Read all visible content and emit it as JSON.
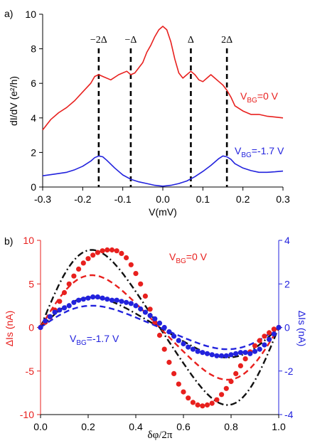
{
  "chart_data": [
    {
      "panel_label": "a)",
      "type": "line",
      "xlabel": "V(mV)",
      "ylabel": "dI/dV (e²/h)",
      "xlim": [
        -0.3,
        0.3
      ],
      "ylim": [
        0,
        10
      ],
      "x_ticks": [
        "-0.3",
        "-0.2",
        "-0.1",
        "0.0",
        "0.1",
        "0.2",
        "0.3"
      ],
      "y_ticks": [
        "0",
        "2",
        "4",
        "6",
        "8",
        "10"
      ],
      "grid": false,
      "series": [
        {
          "color": "#e8201e",
          "label_main": "V",
          "label_sub": "BG",
          "label_rest": "=0 V",
          "x": [
            -0.3,
            -0.28,
            -0.26,
            -0.24,
            -0.22,
            -0.2,
            -0.18,
            -0.17,
            -0.16,
            -0.15,
            -0.13,
            -0.11,
            -0.09,
            -0.08,
            -0.07,
            -0.05,
            -0.04,
            -0.03,
            -0.02,
            -0.01,
            0.0,
            0.01,
            0.02,
            0.03,
            0.04,
            0.05,
            0.06,
            0.07,
            0.08,
            0.09,
            0.1,
            0.11,
            0.12,
            0.13,
            0.14,
            0.15,
            0.16,
            0.17,
            0.18,
            0.2,
            0.22,
            0.24,
            0.26,
            0.28,
            0.3
          ],
          "y": [
            3.3,
            3.9,
            4.3,
            4.6,
            5.0,
            5.5,
            6.0,
            6.4,
            6.5,
            6.4,
            6.2,
            6.5,
            6.7,
            6.5,
            6.6,
            7.2,
            7.8,
            8.2,
            8.7,
            9.1,
            9.3,
            9.1,
            8.4,
            7.4,
            6.6,
            6.3,
            6.5,
            6.7,
            6.5,
            6.2,
            6.1,
            6.3,
            6.5,
            6.3,
            6.1,
            5.9,
            5.6,
            5.2,
            4.7,
            4.4,
            4.2,
            4.2,
            4.1,
            4.05,
            4.0
          ]
        },
        {
          "color": "#2222dd",
          "label_main": "V",
          "label_sub": "BG",
          "label_rest": "=-1.7 V",
          "x": [
            -0.3,
            -0.27,
            -0.24,
            -0.22,
            -0.2,
            -0.18,
            -0.17,
            -0.16,
            -0.15,
            -0.14,
            -0.12,
            -0.1,
            -0.08,
            -0.06,
            -0.04,
            -0.02,
            0.0,
            0.02,
            0.04,
            0.06,
            0.08,
            0.1,
            0.12,
            0.14,
            0.15,
            0.16,
            0.17,
            0.18,
            0.2,
            0.22,
            0.24,
            0.26,
            0.28,
            0.3
          ],
          "y": [
            0.65,
            0.75,
            0.85,
            1.0,
            1.2,
            1.5,
            1.7,
            1.8,
            1.75,
            1.55,
            1.1,
            0.7,
            0.45,
            0.3,
            0.2,
            0.1,
            0.05,
            0.1,
            0.2,
            0.35,
            0.6,
            0.9,
            1.25,
            1.65,
            1.8,
            1.75,
            1.6,
            1.35,
            1.1,
            0.95,
            0.85,
            0.85,
            0.88,
            0.92
          ]
        }
      ],
      "vlines": [
        {
          "x": -0.16,
          "label": "−2Δ"
        },
        {
          "x": -0.08,
          "label": "−Δ"
        },
        {
          "x": 0.07,
          "label": "Δ"
        },
        {
          "x": 0.16,
          "label": "2Δ"
        }
      ]
    },
    {
      "panel_label": "b)",
      "type": "scatter",
      "xlabel": "δφ/2π",
      "ylabel_left": "ΔIs (nA)",
      "ylabel_right": "ΔIs (nA)",
      "xlim": [
        0,
        1
      ],
      "ylim_left": [
        -10,
        10
      ],
      "ylim_right": [
        -4,
        4
      ],
      "x_ticks": [
        "0.0",
        "0.2",
        "0.4",
        "0.6",
        "0.8",
        "1.0"
      ],
      "y_ticks_left": [
        "-10",
        "-5",
        "0",
        "5",
        "10"
      ],
      "y_ticks_right": [
        "-4",
        "-2",
        "0",
        "2",
        "4"
      ],
      "grid": false,
      "series": [
        {
          "color": "#e8201e",
          "axis": "left",
          "label_main": "V",
          "label_sub": "BG",
          "label_rest": "=0 V",
          "x": [
            0.0,
            0.02,
            0.04,
            0.06,
            0.08,
            0.1,
            0.12,
            0.14,
            0.16,
            0.18,
            0.2,
            0.22,
            0.24,
            0.26,
            0.28,
            0.3,
            0.32,
            0.34,
            0.36,
            0.38,
            0.4,
            0.42,
            0.44,
            0.46,
            0.48,
            0.5,
            0.52,
            0.54,
            0.56,
            0.58,
            0.6,
            0.62,
            0.64,
            0.66,
            0.68,
            0.7,
            0.72,
            0.74,
            0.76,
            0.78,
            0.8,
            0.82,
            0.84,
            0.86,
            0.88,
            0.9,
            0.92,
            0.94,
            0.96,
            0.98,
            1.0
          ],
          "y": [
            0.0,
            0.6,
            1.2,
            2.0,
            3.0,
            4.0,
            5.0,
            5.9,
            6.7,
            7.4,
            7.9,
            8.3,
            8.6,
            8.8,
            8.9,
            8.9,
            8.8,
            8.5,
            8.0,
            7.2,
            6.2,
            5.0,
            3.6,
            2.1,
            0.6,
            -0.9,
            -2.5,
            -4.0,
            -5.3,
            -6.5,
            -7.4,
            -8.1,
            -8.6,
            -8.9,
            -9.0,
            -8.9,
            -8.7,
            -8.3,
            -7.7,
            -7.0,
            -6.2,
            -5.3,
            -4.4,
            -3.6,
            -2.8,
            -2.1,
            -1.5,
            -1.0,
            -0.6,
            -0.2,
            0.0
          ]
        },
        {
          "color": "#2222dd",
          "axis": "right",
          "label_main": "V",
          "label_sub": "BG",
          "label_rest": "=-1.7 V",
          "x": [
            0.0,
            0.02,
            0.04,
            0.06,
            0.08,
            0.1,
            0.12,
            0.14,
            0.16,
            0.18,
            0.2,
            0.22,
            0.24,
            0.26,
            0.28,
            0.3,
            0.32,
            0.34,
            0.36,
            0.38,
            0.4,
            0.42,
            0.44,
            0.46,
            0.48,
            0.5,
            0.52,
            0.54,
            0.56,
            0.58,
            0.6,
            0.62,
            0.64,
            0.66,
            0.68,
            0.7,
            0.72,
            0.74,
            0.76,
            0.78,
            0.8,
            0.82,
            0.84,
            0.86,
            0.88,
            0.9,
            0.92,
            0.94,
            0.96,
            0.98,
            1.0
          ],
          "y": [
            0.0,
            0.3,
            0.5,
            0.7,
            0.8,
            0.9,
            1.0,
            1.15,
            1.25,
            1.3,
            1.35,
            1.4,
            1.4,
            1.35,
            1.3,
            1.25,
            1.25,
            1.2,
            1.15,
            1.1,
            1.0,
            0.85,
            0.7,
            0.55,
            0.4,
            0.2,
            0.0,
            -0.2,
            -0.4,
            -0.6,
            -0.75,
            -0.9,
            -1.0,
            -1.1,
            -1.15,
            -1.2,
            -1.25,
            -1.3,
            -1.3,
            -1.3,
            -1.25,
            -1.2,
            -1.15,
            -1.15,
            -1.2,
            -1.1,
            -1.0,
            -0.8,
            -0.55,
            -0.3,
            0.0
          ]
        }
      ],
      "fits": [
        {
          "color": "#111111",
          "style": "dash-dot",
          "axis": "left",
          "amplitude": 8.9,
          "note": "black fit through red points"
        },
        {
          "color": "#e8201e",
          "style": "dash",
          "axis": "left",
          "amplitude": 6.0
        },
        {
          "color": "#111111",
          "style": "dash-dot",
          "axis": "right",
          "amplitude": 1.38
        },
        {
          "color": "#2222dd",
          "style": "dash",
          "axis": "right",
          "amplitude": 1.0
        }
      ]
    }
  ]
}
